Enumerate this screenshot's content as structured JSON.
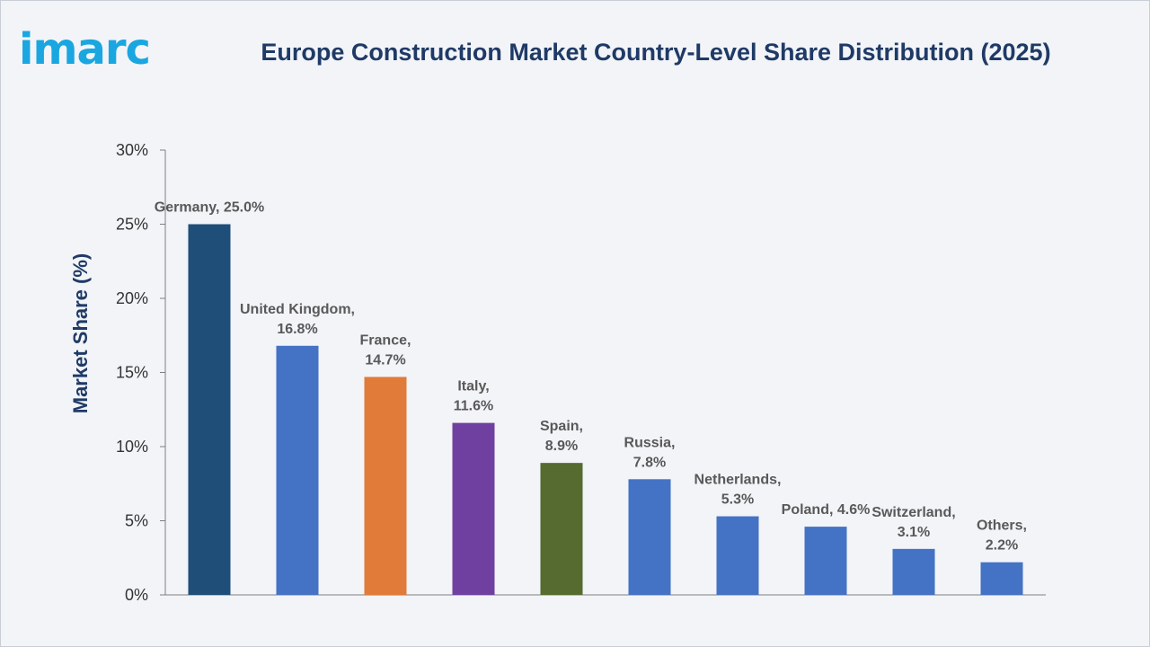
{
  "brand": {
    "logo_text": "imarc"
  },
  "chart_data": {
    "type": "bar",
    "title": "Europe Construction Market Country-Level Share Distribution (2025)",
    "xlabel": "",
    "ylabel": "Market Share (%)",
    "ylim": [
      0,
      30
    ],
    "yticks": [
      "0%",
      "5%",
      "10%",
      "15%",
      "20%",
      "25%",
      "30%"
    ],
    "grid": false,
    "categories": [
      "Germany",
      "United Kingdom",
      "France",
      "Italy",
      "Spain",
      "Russia",
      "Netherlands",
      "Poland",
      "Switzerland",
      "Others"
    ],
    "values": [
      25.0,
      16.8,
      14.7,
      11.6,
      8.9,
      7.8,
      5.3,
      4.6,
      3.1,
      2.2
    ],
    "labels": [
      [
        "Germany, 25.0%"
      ],
      [
        "United Kingdom,",
        "16.8%"
      ],
      [
        "France,",
        "14.7%"
      ],
      [
        "Italy,",
        "11.6%"
      ],
      [
        "Spain,",
        "8.9%"
      ],
      [
        "Russia,",
        "7.8%"
      ],
      [
        "Netherlands,",
        "5.3%"
      ],
      [
        "Poland, 4.6%"
      ],
      [
        "Switzerland,",
        "3.1%"
      ],
      [
        "Others,",
        "2.2%"
      ]
    ],
    "colors": [
      "#1f4e79",
      "#4472c4",
      "#e07b39",
      "#7040a0",
      "#556b2f",
      "#4472c4",
      "#4472c4",
      "#4472c4",
      "#4472c4",
      "#4472c4"
    ]
  }
}
